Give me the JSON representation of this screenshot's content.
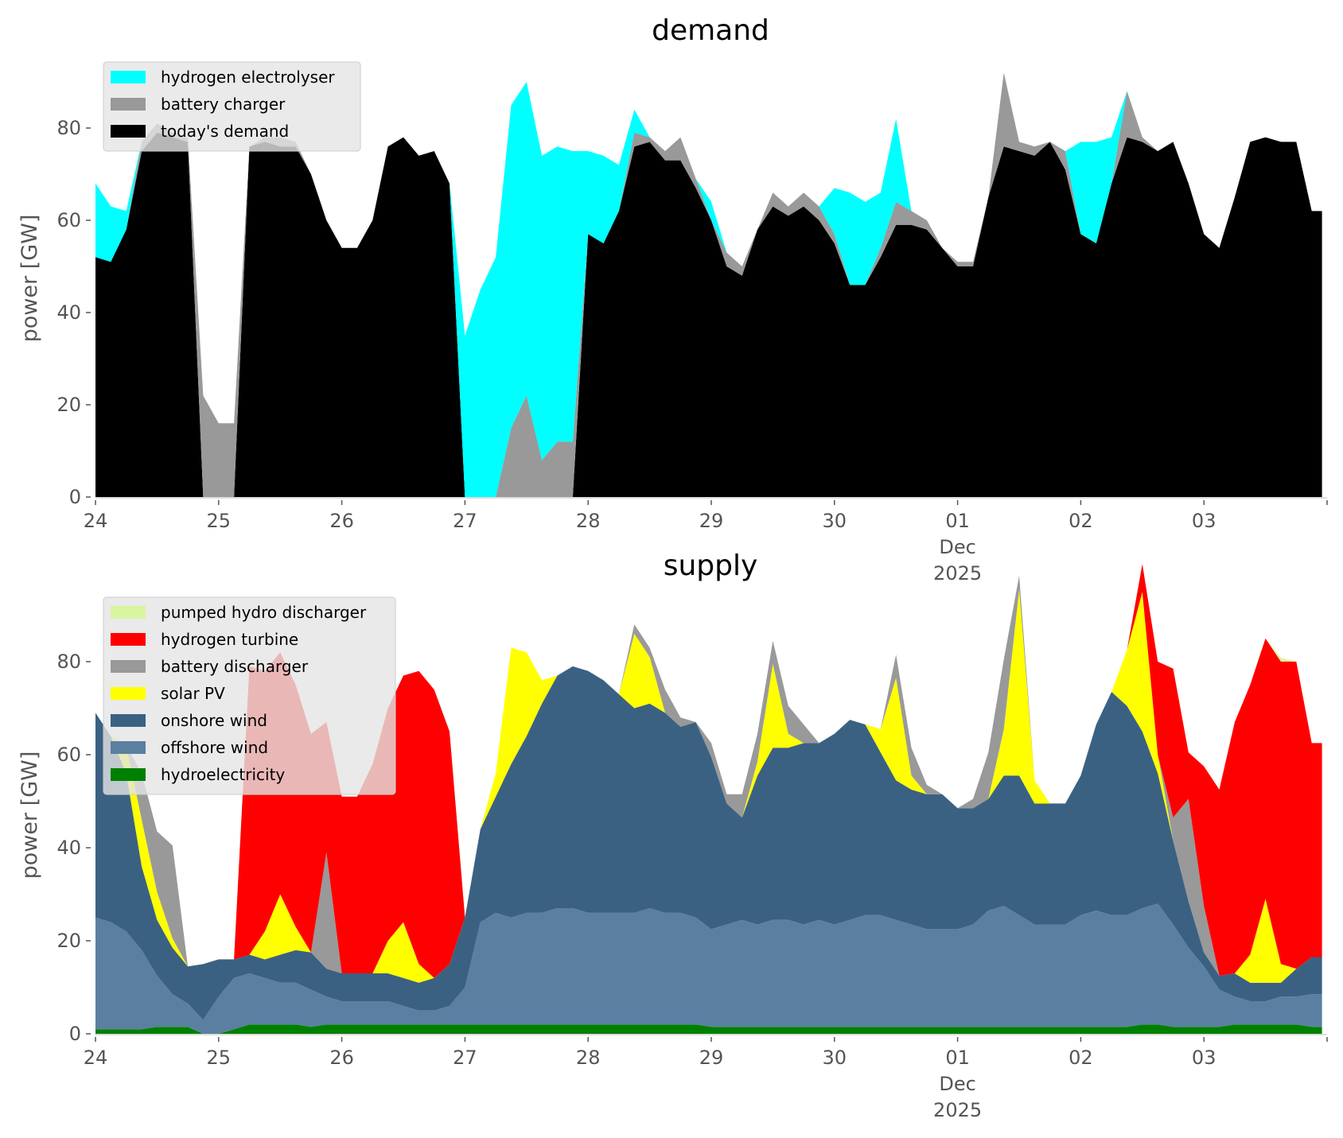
{
  "chart_data": [
    {
      "type": "area",
      "stacked": true,
      "title": "demand",
      "xlabel": "",
      "ylabel": "power [GW]",
      "ylim": [
        0,
        95
      ],
      "yticks": [
        "0",
        "20",
        "40",
        "60",
        "80"
      ],
      "xticks": [
        "24",
        "25",
        "26",
        "27",
        "28",
        "29",
        "30",
        "01",
        "02",
        "03"
      ],
      "xtick_sub": [
        "Dec",
        "2025"
      ],
      "x_unit": "hours since 24 Nov 2025 00:00 (3-hourly)",
      "x_step_hours": 3,
      "x_range_days": [
        0,
        10
      ],
      "legend": "upper-left",
      "series": [
        {
          "name": "today's demand",
          "color": "#000000",
          "values": [
            52,
            51,
            58,
            75,
            79,
            78,
            77,
            0,
            0,
            0,
            76,
            77,
            76,
            76,
            70,
            60,
            54,
            54,
            60,
            76,
            78,
            74,
            75,
            68,
            0,
            0,
            0,
            0,
            0,
            0,
            0,
            0,
            57,
            55,
            62,
            76,
            77,
            73,
            73,
            67,
            60,
            50,
            48,
            58,
            63,
            61,
            63,
            60,
            55,
            46,
            46,
            52,
            59,
            59,
            58,
            54,
            50,
            50,
            65,
            76,
            75,
            74,
            77,
            71,
            57,
            55,
            68,
            78,
            77,
            75,
            77,
            68,
            57,
            54,
            65,
            77,
            78,
            77,
            77,
            62
          ]
        },
        {
          "name": "battery charger",
          "color": "#999999",
          "values": [
            0,
            0,
            0,
            2,
            2,
            1,
            1,
            22,
            16,
            16,
            0,
            1,
            2,
            1,
            0,
            0,
            0,
            0,
            0,
            0,
            0,
            0,
            0,
            0,
            0,
            0,
            0,
            15,
            22,
            8,
            12,
            12,
            0,
            0,
            0,
            3,
            1,
            2,
            5,
            2,
            0,
            3,
            2,
            0,
            3,
            2,
            3,
            3,
            2,
            0,
            0,
            2,
            5,
            3,
            2,
            0,
            1,
            1,
            0,
            16,
            2,
            2,
            0,
            4,
            0,
            0,
            0,
            10,
            1,
            0,
            0,
            0,
            0,
            0,
            0,
            0,
            0,
            0,
            0,
            0
          ]
        },
        {
          "name": "hydrogen electrolyser",
          "color": "#00ffff",
          "values": [
            16,
            12,
            4,
            0,
            0,
            0,
            0,
            0,
            0,
            0,
            0,
            0,
            0,
            0,
            0,
            0,
            0,
            0,
            0,
            0,
            0,
            0,
            0,
            0,
            35,
            45,
            52,
            70,
            68,
            66,
            64,
            63,
            18,
            19,
            10,
            5,
            0,
            0,
            0,
            0,
            4,
            0,
            0,
            0,
            0,
            0,
            0,
            0,
            10,
            20,
            18,
            12,
            18,
            0,
            0,
            0,
            0,
            0,
            0,
            0,
            0,
            0,
            0,
            0,
            20,
            22,
            10,
            0,
            0,
            0,
            0,
            0,
            0,
            0,
            0,
            0,
            0,
            0,
            0,
            0
          ]
        }
      ]
    },
    {
      "type": "area",
      "stacked": true,
      "title": "supply",
      "xlabel": "",
      "ylabel": "power [GW]",
      "ylim": [
        0,
        95
      ],
      "yticks": [
        "0",
        "20",
        "40",
        "60",
        "80"
      ],
      "xticks": [
        "24",
        "25",
        "26",
        "27",
        "28",
        "29",
        "30",
        "01",
        "02",
        "03"
      ],
      "xtick_sub": [
        "Dec",
        "2025"
      ],
      "x_unit": "hours since 24 Nov 2025 00:00 (3-hourly)",
      "x_step_hours": 3,
      "x_range_days": [
        0,
        10
      ],
      "legend": "upper-left",
      "series": [
        {
          "name": "hydroelectricity",
          "color": "#008000",
          "values": [
            1,
            1,
            1,
            1,
            1.5,
            1.5,
            1.5,
            0,
            0,
            1,
            2,
            2,
            2,
            2,
            1.5,
            2,
            2,
            2,
            2,
            2,
            2,
            2,
            2,
            2,
            2,
            2,
            2,
            2,
            2,
            2,
            2,
            2,
            2,
            2,
            2,
            2,
            2,
            2,
            2,
            2,
            1.5,
            1.5,
            1.5,
            1.5,
            1.5,
            1.5,
            1.5,
            1.5,
            1.5,
            1.5,
            1.5,
            1.5,
            1.5,
            1.5,
            1.5,
            1.5,
            1.5,
            1.5,
            1.5,
            1.5,
            1.5,
            1.5,
            1.5,
            1.5,
            1.5,
            1.5,
            1.5,
            1.5,
            2,
            2,
            1.5,
            1.5,
            1.5,
            1.5,
            2,
            2,
            2,
            2,
            2,
            1.5
          ]
        },
        {
          "name": "offshore wind",
          "color": "#5b7fa1",
          "values": [
            24,
            23,
            21,
            17,
            11,
            7,
            5,
            3,
            8,
            11,
            11,
            10,
            9,
            9,
            8,
            6,
            5,
            5,
            5,
            5,
            4,
            3,
            3,
            4,
            8,
            22,
            24,
            23,
            24,
            24,
            25,
            25,
            24,
            24,
            24,
            24,
            25,
            24,
            24,
            23,
            21,
            22,
            23,
            22,
            23,
            23,
            22,
            23,
            22,
            23,
            24,
            24,
            23,
            22,
            21,
            21,
            21,
            22,
            25,
            26,
            24,
            22,
            22,
            22,
            24,
            25,
            24,
            24,
            25,
            26,
            22,
            17,
            13,
            8,
            6,
            5,
            5,
            6,
            6,
            7
          ]
        },
        {
          "name": "onshore wind",
          "color": "#3b6182",
          "values": [
            44,
            40,
            34,
            18,
            12,
            10,
            8,
            12,
            8,
            4,
            4,
            4,
            6,
            7,
            8,
            6,
            6,
            6,
            6,
            6,
            6,
            6,
            7,
            9,
            15,
            20,
            25,
            33,
            38,
            45,
            50,
            52,
            52,
            50,
            47,
            44,
            44,
            43,
            40,
            42,
            37,
            26,
            22,
            32,
            37,
            37,
            39,
            38,
            41,
            43,
            41,
            35,
            30,
            29,
            29,
            29,
            26,
            25,
            24,
            28,
            30,
            26,
            26,
            26,
            30,
            40,
            48,
            45,
            38,
            28,
            18,
            10,
            3,
            3,
            5,
            4,
            4,
            3,
            6,
            8
          ]
        },
        {
          "name": "solar PV",
          "color": "#ffff00",
          "values": [
            0,
            0,
            6,
            10,
            6,
            2,
            0,
            0,
            0,
            0,
            0,
            6,
            13,
            5,
            0,
            0,
            0,
            0,
            0,
            7,
            12,
            4,
            0,
            0,
            0,
            0,
            5,
            25,
            18,
            5,
            0,
            0,
            0,
            0,
            0,
            16,
            10,
            0,
            0,
            0,
            0,
            0,
            0,
            3,
            18,
            3,
            0,
            0,
            0,
            0,
            0,
            5,
            22,
            3,
            0,
            0,
            0,
            0,
            0,
            10,
            40,
            5,
            0,
            0,
            0,
            0,
            0,
            12,
            30,
            4,
            0,
            0,
            0,
            0,
            0,
            6,
            18,
            4,
            0,
            0
          ]
        },
        {
          "name": "battery discharger",
          "color": "#999999",
          "values": [
            0,
            0,
            0,
            10,
            13,
            20,
            0,
            0,
            0,
            0,
            0,
            0,
            0,
            0,
            0,
            25,
            0,
            0,
            0,
            0,
            0,
            0,
            0,
            0,
            0,
            0,
            0,
            0,
            0,
            0,
            0,
            0,
            0,
            0,
            0,
            2,
            2,
            5,
            2,
            0,
            3,
            2,
            5,
            6,
            5,
            6,
            4,
            0,
            0,
            0,
            0,
            0,
            5,
            6,
            2,
            0,
            0,
            2,
            10,
            15,
            3,
            0,
            0,
            0,
            0,
            0,
            0,
            0,
            0,
            0,
            5,
            22,
            10,
            0,
            0,
            0,
            0,
            0,
            0,
            0
          ]
        },
        {
          "name": "hydrogen turbine",
          "color": "#ff0000",
          "values": [
            0,
            0,
            0,
            0,
            0,
            0,
            0,
            0,
            0,
            0,
            62,
            56,
            52,
            52,
            47,
            28,
            38,
            38,
            45,
            50,
            53,
            63,
            62,
            50,
            0,
            0,
            0,
            0,
            0,
            0,
            0,
            0,
            0,
            0,
            0,
            0,
            0,
            0,
            0,
            0,
            0,
            0,
            0,
            0,
            0,
            0,
            0,
            0,
            0,
            0,
            0,
            0,
            0,
            0,
            0,
            0,
            0,
            0,
            0,
            0,
            0,
            0,
            0,
            0,
            0,
            0,
            0,
            0,
            6,
            20,
            32,
            10,
            30,
            40,
            54,
            58,
            56,
            65,
            66,
            46
          ]
        },
        {
          "name": "pumped hydro discharger",
          "color": "#d9f59f",
          "values": [
            0,
            0,
            0,
            0,
            0,
            0,
            0,
            0,
            0,
            0,
            0,
            0,
            0,
            0,
            0,
            0,
            0,
            0,
            0,
            0,
            0,
            0,
            0,
            0,
            0,
            0,
            0,
            0,
            0,
            0,
            0,
            0,
            0,
            0,
            0,
            0,
            0,
            0,
            0,
            0,
            0,
            0,
            0,
            0,
            0,
            0,
            0,
            0,
            0,
            0,
            0,
            0,
            0,
            0,
            0,
            0,
            0,
            0,
            0,
            0,
            0,
            0,
            0,
            0,
            0,
            0,
            0,
            0,
            0,
            0,
            0,
            0,
            0,
            0,
            0,
            0,
            0,
            0.8,
            0,
            0
          ]
        }
      ]
    }
  ],
  "legends": [
    [
      "hydrogen electrolyser",
      "battery charger",
      "today's demand"
    ],
    [
      "pumped hydro discharger",
      "hydrogen turbine",
      "battery discharger",
      "solar PV",
      "onshore wind",
      "offshore wind",
      "hydroelectricity"
    ]
  ]
}
